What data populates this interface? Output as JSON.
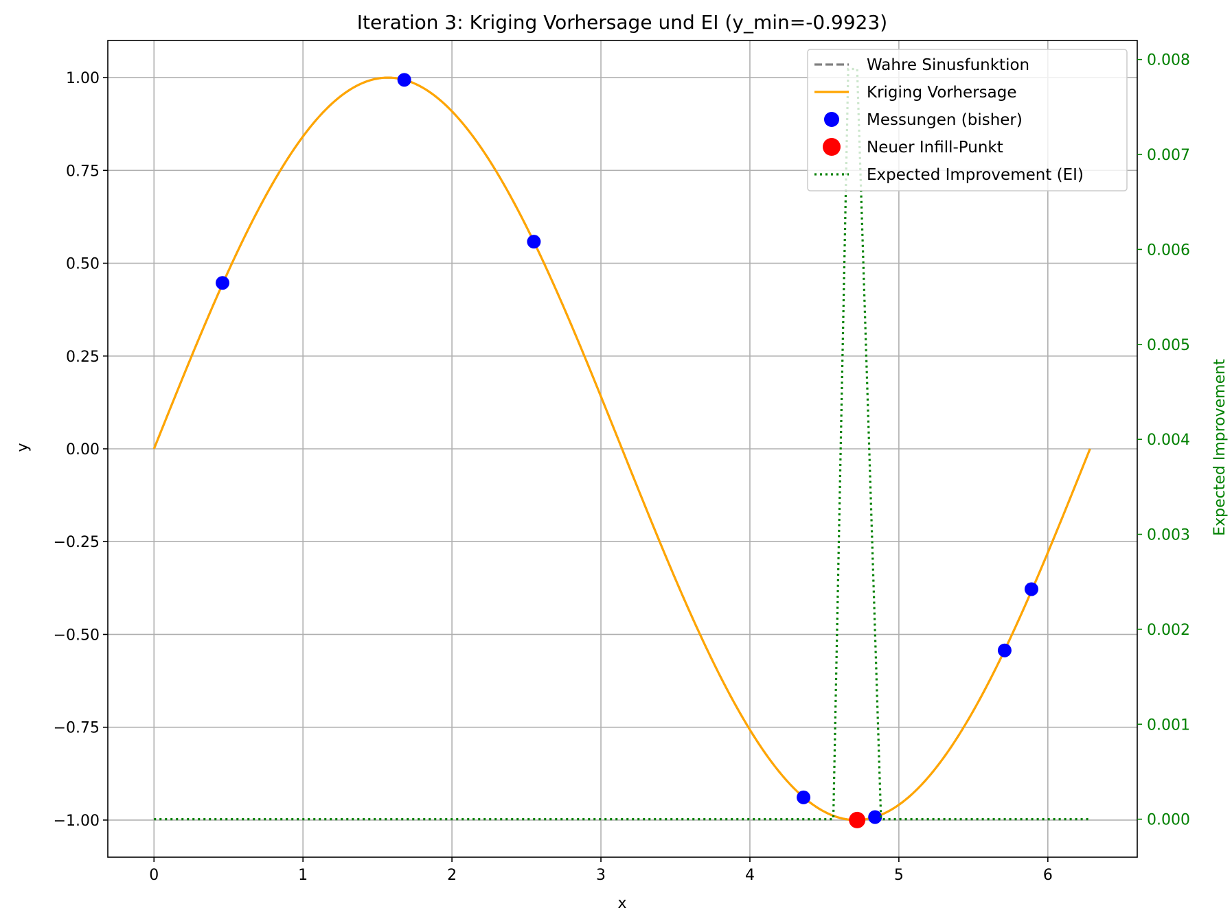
{
  "chart_data": {
    "type": "line",
    "title": "Iteration 3: Kriging Vorhersage und EI (y_min=-0.9923)",
    "xlabel": "x",
    "ylabel": "y",
    "y2label": "Expected Improvement",
    "xlim": [
      -0.31,
      6.6
    ],
    "ylim": [
      -1.1,
      1.1
    ],
    "y2lim": [
      -0.0004,
      0.0082
    ],
    "grid": true,
    "legend_position": "top-right",
    "x_ticks": [
      0,
      1,
      2,
      3,
      4,
      5,
      6
    ],
    "x_tick_labels": [
      "0",
      "1",
      "2",
      "3",
      "4",
      "5",
      "6"
    ],
    "y_ticks": [
      1.0,
      0.75,
      0.5,
      0.25,
      0.0,
      -0.25,
      -0.5,
      -0.75,
      -1.0
    ],
    "y_tick_labels": [
      "1.00",
      "0.75",
      "0.50",
      "0.25",
      "0.00",
      "−0.25",
      "−0.50",
      "−0.75",
      "−1.00"
    ],
    "y2_ticks": [
      0.008,
      0.007,
      0.006,
      0.005,
      0.004,
      0.003,
      0.002,
      0.001,
      0.0
    ],
    "y2_tick_labels": [
      "0.008",
      "0.007",
      "0.006",
      "0.005",
      "0.004",
      "0.003",
      "0.002",
      "0.001",
      "0.000"
    ],
    "series": [
      {
        "name": "Wahre Sinusfunktion",
        "kind": "function",
        "function": "sin(x)",
        "x_range": [
          0,
          6.2832
        ],
        "color": "#808080",
        "style": "dashed",
        "axis": "left"
      },
      {
        "name": "Kriging Vorhersage",
        "kind": "function",
        "function": "sin(x)",
        "x_range": [
          0,
          6.2832
        ],
        "color": "#FFA500",
        "style": "solid",
        "axis": "left"
      },
      {
        "name": "Messungen (bisher)",
        "kind": "scatter",
        "color": "#0000FF",
        "axis": "left",
        "points": [
          {
            "x": 0.46,
            "y": 0.447
          },
          {
            "x": 1.68,
            "y": 0.994
          },
          {
            "x": 2.55,
            "y": 0.558
          },
          {
            "x": 4.36,
            "y": -0.939
          },
          {
            "x": 4.84,
            "y": -0.992
          },
          {
            "x": 5.71,
            "y": -0.543
          },
          {
            "x": 5.89,
            "y": -0.378
          }
        ]
      },
      {
        "name": "Neuer Infill-Punkt",
        "kind": "scatter",
        "color": "#FF0000",
        "axis": "left",
        "points": [
          {
            "x": 4.72,
            "y": -1.0
          }
        ]
      },
      {
        "name": "Expected Improvement (EI)",
        "kind": "line",
        "color": "#008000",
        "style": "dotted",
        "axis": "right",
        "points": [
          {
            "x": 0.0,
            "y": 0.0
          },
          {
            "x": 4.56,
            "y": 0.0
          },
          {
            "x": 4.66,
            "y": 0.0079
          },
          {
            "x": 4.72,
            "y": 0.0079
          },
          {
            "x": 4.88,
            "y": 0.0
          },
          {
            "x": 6.28,
            "y": 0.0
          }
        ]
      }
    ]
  }
}
